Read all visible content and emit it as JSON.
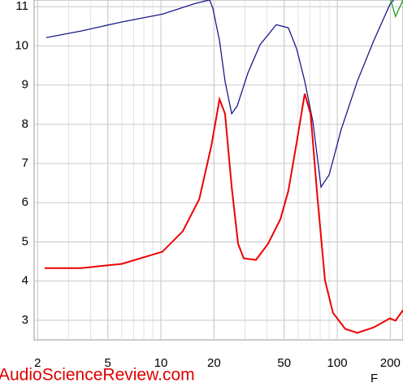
{
  "chart_data": {
    "type": "line",
    "xlabel": "F",
    "watermark": "AudioScienceReview.com",
    "xscale": "log",
    "grid": true,
    "xlim": [
      1.91,
      236
    ],
    "ylim": [
      2.5,
      11.17
    ],
    "xticks": [
      2,
      5,
      10,
      20,
      50,
      100,
      200
    ],
    "yticks": [
      3,
      4,
      5,
      6,
      7,
      8,
      9,
      10,
      11
    ],
    "series": [
      {
        "name": "blue",
        "color": "#1a1a8c",
        "x": [
          2.24,
          3.53,
          6.01,
          10.2,
          15.6,
          18.9,
          19.7,
          21.5,
          23.1,
          25.2,
          27.1,
          31.1,
          36.5,
          45.1,
          52.8,
          58.9,
          65.4,
          72.8,
          80.9,
          90.0,
          105,
          130,
          161,
          199,
          209
        ],
        "values": [
          10.21,
          10.38,
          10.61,
          10.81,
          11.08,
          11.17,
          10.96,
          10.13,
          9.1,
          8.27,
          8.47,
          9.3,
          10.03,
          10.54,
          10.46,
          9.92,
          9.1,
          8.06,
          6.4,
          6.71,
          7.85,
          9.1,
          10.13,
          11.06,
          11.17
        ]
      },
      {
        "name": "red",
        "color": "#ee0000",
        "x": [
          2.19,
          3.53,
          6.01,
          10.2,
          13.3,
          16.5,
          19.3,
          21.5,
          23.1,
          25.2,
          27.4,
          29.5,
          34.6,
          40.5,
          47.6,
          52.8,
          58.9,
          65.4,
          70.6,
          77.0,
          85.2,
          94.6,
          111,
          130,
          161,
          199,
          214,
          236
        ],
        "values": [
          4.33,
          4.33,
          4.44,
          4.75,
          5.27,
          6.09,
          7.44,
          8.64,
          8.27,
          6.4,
          4.95,
          4.58,
          4.54,
          4.95,
          5.58,
          6.3,
          7.54,
          8.78,
          8.27,
          6.2,
          4.02,
          3.19,
          2.78,
          2.68,
          2.82,
          3.05,
          2.99,
          3.26
        ]
      },
      {
        "name": "green",
        "color": "#1e9e1e",
        "x": [
          201,
          214,
          236
        ],
        "values": [
          11.17,
          10.75,
          11.17
        ]
      }
    ]
  }
}
